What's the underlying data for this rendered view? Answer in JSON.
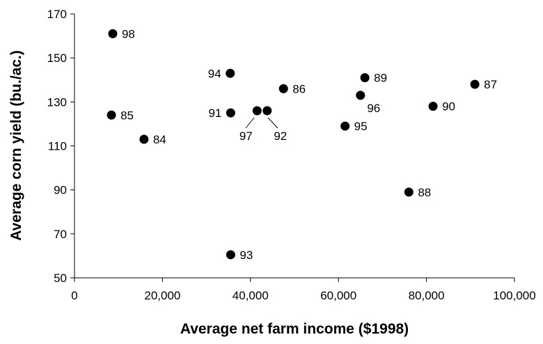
{
  "chart_data": {
    "type": "scatter",
    "title": "",
    "xlabel": "Average net farm income ($1998)",
    "ylabel": "Average corn yield (bu./ac.)",
    "xlim": [
      0,
      100000
    ],
    "ylim": [
      50,
      170
    ],
    "x_ticks": [
      0,
      20000,
      40000,
      60000,
      80000,
      100000
    ],
    "x_tick_labels": [
      "0",
      "20,000",
      "40,000",
      "60,000",
      "80,000",
      "100,000"
    ],
    "y_ticks": [
      50,
      70,
      90,
      110,
      130,
      150,
      170
    ],
    "y_tick_labels": [
      "50",
      "70",
      "90",
      "110",
      "130",
      "150",
      "170"
    ],
    "grid": false,
    "legend": "none",
    "marker_color": "#000000",
    "points": [
      {
        "label": "98",
        "x": 8700,
        "y": 161
      },
      {
        "label": "94",
        "x": 35400,
        "y": 143
      },
      {
        "label": "89",
        "x": 66000,
        "y": 141
      },
      {
        "label": "87",
        "x": 91000,
        "y": 138
      },
      {
        "label": "86",
        "x": 47500,
        "y": 136
      },
      {
        "label": "96",
        "x": 65000,
        "y": 133
      },
      {
        "label": "90",
        "x": 81500,
        "y": 128
      },
      {
        "label": "97",
        "x": 41500,
        "y": 126
      },
      {
        "label": "92",
        "x": 43800,
        "y": 126
      },
      {
        "label": "91",
        "x": 35500,
        "y": 125
      },
      {
        "label": "85",
        "x": 8400,
        "y": 124
      },
      {
        "label": "95",
        "x": 61500,
        "y": 119
      },
      {
        "label": "84",
        "x": 15800,
        "y": 113
      },
      {
        "label": "88",
        "x": 76000,
        "y": 89
      },
      {
        "label": "93",
        "x": 35500,
        "y": 60.5
      }
    ]
  }
}
